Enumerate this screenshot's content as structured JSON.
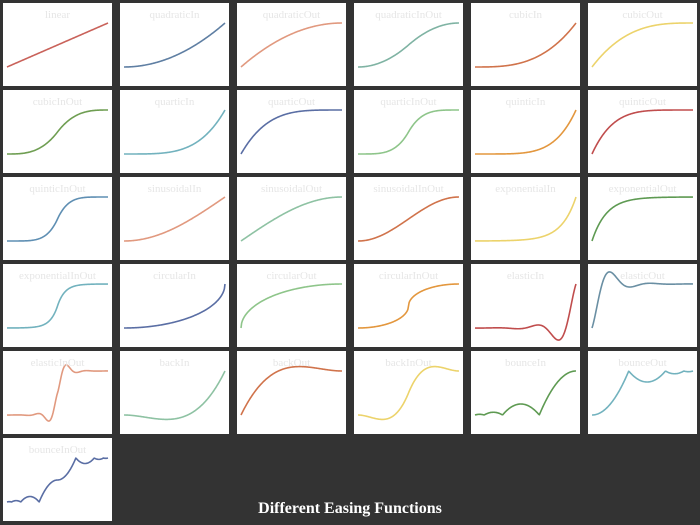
{
  "title": "Different Easing Functions",
  "colors": {
    "background": "#333333",
    "panel": "#ffffff",
    "label": "#e6e6e6"
  },
  "chart_data": {
    "type": "line",
    "layout": "small-multiples",
    "grid": false,
    "xlim": [
      0,
      1
    ],
    "ylim": [
      0,
      1
    ],
    "panels": [
      {
        "name": "linear",
        "color": "#c9625a"
      },
      {
        "name": "quadraticIn",
        "color": "#5f7fa3"
      },
      {
        "name": "quadraticOut",
        "color": "#e1997f"
      },
      {
        "name": "quadraticInOut",
        "color": "#7fb3a3"
      },
      {
        "name": "cubicIn",
        "color": "#d0734b"
      },
      {
        "name": "cubicOut",
        "color": "#ecd36b"
      },
      {
        "name": "cubicInOut",
        "color": "#6f9e52"
      },
      {
        "name": "quarticIn",
        "color": "#72b2be"
      },
      {
        "name": "quarticOut",
        "color": "#5a6ea4"
      },
      {
        "name": "quarticInOut",
        "color": "#8ec58a"
      },
      {
        "name": "quinticIn",
        "color": "#e3973e"
      },
      {
        "name": "quinticOut",
        "color": "#c04d4d"
      },
      {
        "name": "quinticInOut",
        "color": "#5f8fb3"
      },
      {
        "name": "sinusoidalIn",
        "color": "#e1997f"
      },
      {
        "name": "sinusoidalOut",
        "color": "#8ec2a3"
      },
      {
        "name": "sinusoidalInOut",
        "color": "#d0734b"
      },
      {
        "name": "exponentialIn",
        "color": "#ecd36b"
      },
      {
        "name": "exponentialOut",
        "color": "#5e9a52"
      },
      {
        "name": "exponentialInOut",
        "color": "#72b2be"
      },
      {
        "name": "circularIn",
        "color": "#5a6ea4"
      },
      {
        "name": "circularOut",
        "color": "#8ec58a"
      },
      {
        "name": "circularInOut",
        "color": "#e3973e"
      },
      {
        "name": "elasticIn",
        "color": "#c04d4d"
      },
      {
        "name": "elasticOut",
        "color": "#6a8fa3"
      },
      {
        "name": "elasticInOut",
        "color": "#e1997f"
      },
      {
        "name": "backIn",
        "color": "#8ec2a3"
      },
      {
        "name": "backOut",
        "color": "#d0734b"
      },
      {
        "name": "backInOut",
        "color": "#ecd36b"
      },
      {
        "name": "bounceIn",
        "color": "#5e9a52"
      },
      {
        "name": "bounceOut",
        "color": "#72b2be"
      },
      {
        "name": "bounceInOut",
        "color": "#5a6ea4"
      }
    ]
  }
}
